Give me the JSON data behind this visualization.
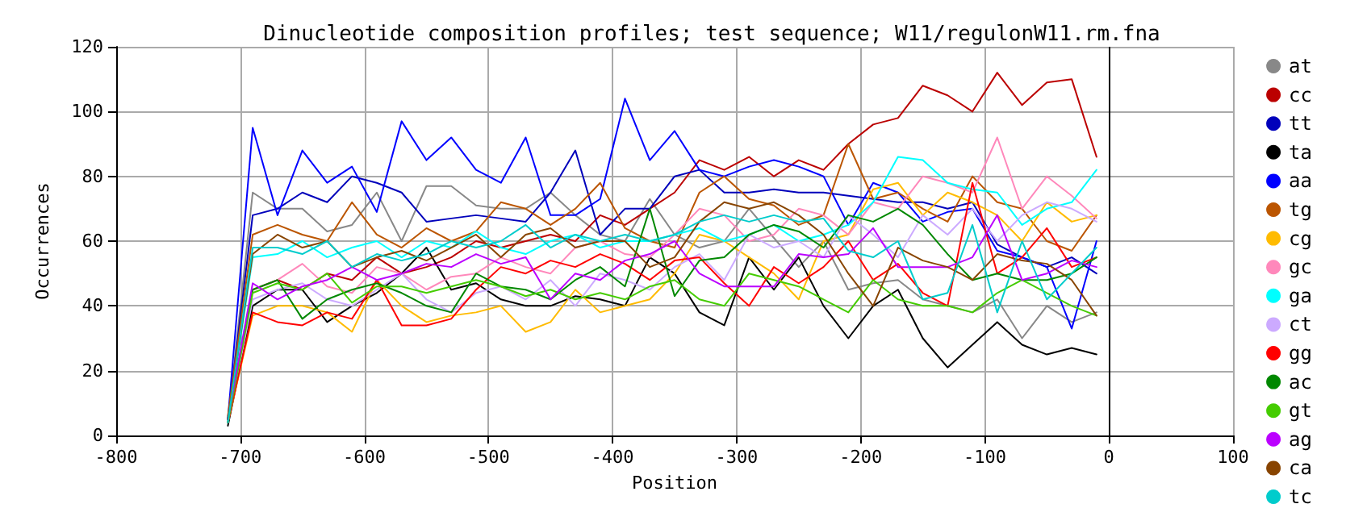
{
  "chart_data": {
    "type": "line",
    "title": "Dinucleotide composition profiles; test sequence; W11/regulonW11.rm.fna",
    "xlabel": "Position",
    "ylabel": "Occurrences",
    "x": [
      -710,
      -690,
      -670,
      -650,
      -630,
      -610,
      -590,
      -570,
      -550,
      -530,
      -510,
      -490,
      -470,
      -450,
      -430,
      -410,
      -390,
      -370,
      -350,
      -330,
      -310,
      -290,
      -270,
      -250,
      -230,
      -210,
      -190,
      -170,
      -150,
      -130,
      -110,
      -90,
      -70,
      -50,
      -30,
      -10
    ],
    "xlim": [
      -800,
      100
    ],
    "xticks": [
      -800,
      -700,
      -600,
      -500,
      -400,
      -300,
      -200,
      -100,
      0,
      100
    ],
    "ylim": [
      0,
      120
    ],
    "yticks": [
      0,
      20,
      40,
      60,
      80,
      100,
      120
    ],
    "grid": true,
    "legend": "right",
    "marker": "none",
    "line_style": "solid",
    "ref_lines": [
      {
        "axis": "x",
        "value": 0,
        "color": "#000000"
      }
    ],
    "series": [
      {
        "name": "at",
        "color": "#888888",
        "values": [
          4,
          75,
          70,
          70,
          63,
          65,
          75,
          60,
          77,
          77,
          71,
          70,
          70,
          75,
          68,
          62,
          60,
          73,
          62,
          58,
          60,
          70,
          61,
          52,
          60,
          45,
          47,
          48,
          42,
          40,
          38,
          42,
          30,
          40,
          35,
          38
        ]
      },
      {
        "name": "cc",
        "color": "#bb0000",
        "values": [
          5,
          45,
          48,
          45,
          50,
          48,
          55,
          50,
          52,
          55,
          60,
          58,
          60,
          62,
          60,
          68,
          65,
          70,
          75,
          85,
          82,
          86,
          80,
          85,
          82,
          90,
          96,
          98,
          108,
          105,
          100,
          112,
          102,
          109,
          110,
          86
        ]
      },
      {
        "name": "tt",
        "color": "#0000bb",
        "values": [
          5,
          68,
          70,
          75,
          72,
          80,
          78,
          75,
          66,
          67,
          68,
          67,
          66,
          75,
          88,
          62,
          70,
          70,
          80,
          82,
          75,
          75,
          76,
          75,
          75,
          74,
          73,
          72,
          72,
          70,
          72,
          59,
          55,
          52,
          55,
          50
        ]
      },
      {
        "name": "ta",
        "color": "#000000",
        "values": [
          3,
          40,
          45,
          45,
          35,
          40,
          44,
          50,
          58,
          45,
          47,
          42,
          40,
          40,
          43,
          42,
          40,
          55,
          50,
          38,
          34,
          55,
          45,
          55,
          40,
          30,
          40,
          45,
          30,
          21,
          28,
          35,
          28,
          25,
          27,
          25
        ]
      },
      {
        "name": "aa",
        "color": "#0000ff",
        "values": [
          5,
          95,
          68,
          88,
          78,
          83,
          69,
          97,
          85,
          92,
          82,
          78,
          92,
          68,
          68,
          73,
          104,
          85,
          94,
          82,
          80,
          83,
          85,
          83,
          80,
          65,
          78,
          75,
          66,
          69,
          70,
          57,
          55,
          52,
          33,
          60
        ]
      },
      {
        "name": "tg",
        "color": "#bb5500",
        "values": [
          6,
          62,
          65,
          62,
          60,
          72,
          62,
          58,
          64,
          60,
          63,
          72,
          70,
          65,
          70,
          78,
          64,
          60,
          58,
          75,
          80,
          73,
          71,
          65,
          68,
          90,
          73,
          75,
          70,
          66,
          80,
          72,
          70,
          60,
          57,
          68
        ]
      },
      {
        "name": "cg",
        "color": "#ffbb00",
        "values": [
          4,
          37,
          40,
          40,
          38,
          32,
          48,
          40,
          35,
          37,
          38,
          40,
          32,
          35,
          45,
          38,
          40,
          42,
          50,
          62,
          60,
          55,
          50,
          42,
          60,
          62,
          76,
          78,
          68,
          75,
          72,
          68,
          60,
          72,
          66,
          68
        ]
      },
      {
        "name": "gc",
        "color": "#ff88bb",
        "values": [
          4,
          45,
          48,
          53,
          46,
          44,
          52,
          50,
          45,
          49,
          50,
          55,
          52,
          50,
          58,
          60,
          56,
          55,
          62,
          70,
          68,
          60,
          62,
          70,
          68,
          62,
          72,
          70,
          80,
          78,
          75,
          92,
          70,
          80,
          74,
          67
        ]
      },
      {
        "name": "ga",
        "color": "#00ffff",
        "values": [
          4,
          55,
          56,
          60,
          55,
          58,
          60,
          55,
          60,
          58,
          63,
          58,
          56,
          60,
          62,
          58,
          60,
          60,
          62,
          64,
          60,
          62,
          65,
          60,
          62,
          65,
          72,
          86,
          85,
          78,
          76,
          75,
          65,
          70,
          72,
          82
        ]
      },
      {
        "name": "ct",
        "color": "#ccaaff",
        "values": [
          4,
          42,
          45,
          47,
          42,
          40,
          45,
          50,
          42,
          38,
          44,
          46,
          42,
          48,
          40,
          50,
          48,
          45,
          52,
          56,
          48,
          62,
          58,
          60,
          55,
          68,
          62,
          55,
          68,
          62,
          70,
          60,
          68,
          72,
          70,
          66
        ]
      },
      {
        "name": "gg",
        "color": "#ff0000",
        "values": [
          4,
          38,
          35,
          34,
          38,
          36,
          48,
          34,
          34,
          36,
          45,
          52,
          50,
          54,
          52,
          56,
          53,
          48,
          54,
          55,
          47,
          40,
          52,
          47,
          52,
          60,
          48,
          53,
          44,
          40,
          78,
          50,
          55,
          64,
          52,
          55
        ]
      },
      {
        "name": "ac",
        "color": "#008800",
        "values": [
          5,
          45,
          48,
          36,
          42,
          45,
          47,
          44,
          40,
          38,
          50,
          46,
          45,
          42,
          48,
          52,
          46,
          70,
          43,
          54,
          55,
          62,
          65,
          63,
          58,
          68,
          66,
          70,
          65,
          56,
          48,
          50,
          48,
          48,
          50,
          55
        ]
      },
      {
        "name": "gt",
        "color": "#44cc00",
        "values": [
          4,
          44,
          47,
          45,
          50,
          41,
          46,
          46,
          44,
          46,
          48,
          46,
          43,
          45,
          42,
          44,
          42,
          46,
          48,
          42,
          40,
          50,
          48,
          46,
          42,
          38,
          48,
          42,
          40,
          40,
          38,
          44,
          48,
          44,
          40,
          37
        ]
      },
      {
        "name": "ag",
        "color": "#bb00ff",
        "values": [
          5,
          47,
          42,
          46,
          48,
          52,
          48,
          50,
          53,
          52,
          56,
          53,
          55,
          42,
          50,
          48,
          54,
          56,
          60,
          50,
          46,
          46,
          46,
          56,
          55,
          56,
          64,
          52,
          52,
          52,
          55,
          68,
          48,
          50,
          54,
          52
        ]
      },
      {
        "name": "ca",
        "color": "#884400",
        "values": [
          5,
          56,
          62,
          58,
          60,
          52,
          55,
          57,
          54,
          58,
          62,
          55,
          62,
          64,
          58,
          60,
          60,
          52,
          55,
          66,
          72,
          70,
          72,
          68,
          62,
          50,
          40,
          58,
          54,
          52,
          48,
          56,
          54,
          53,
          48,
          37
        ]
      },
      {
        "name": "tc",
        "color": "#00cccc",
        "values": [
          4,
          58,
          58,
          56,
          60,
          52,
          56,
          54,
          56,
          60,
          58,
          60,
          65,
          58,
          62,
          60,
          62,
          60,
          62,
          66,
          68,
          66,
          68,
          66,
          67,
          57,
          55,
          60,
          42,
          44,
          65,
          38,
          60,
          42,
          50,
          58
        ]
      }
    ]
  }
}
